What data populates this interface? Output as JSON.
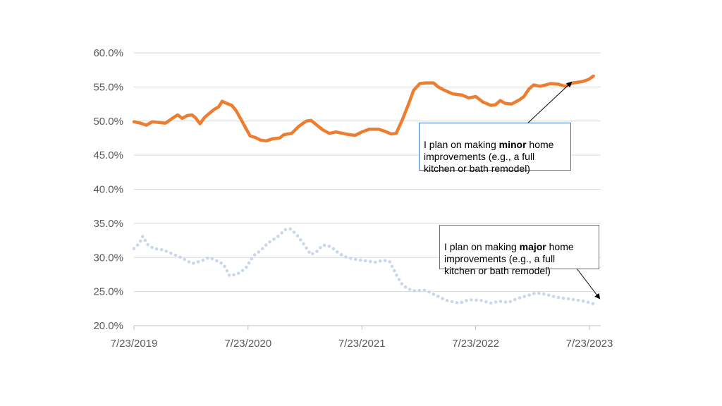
{
  "chart_data": {
    "type": "line",
    "x_axis": {
      "type": "date",
      "ticks": [
        "7/23/2019",
        "7/23/2020",
        "7/23/2021",
        "7/23/2022",
        "7/23/2023"
      ],
      "min": "2019-07-23",
      "max": "2023-08-10"
    },
    "y_axis": {
      "ticks": [
        "20.0%",
        "25.0%",
        "30.0%",
        "35.0%",
        "40.0%",
        "45.0%",
        "50.0%",
        "55.0%",
        "60.0%"
      ],
      "min": 20,
      "max": 60,
      "unit": "%"
    },
    "grid": true,
    "legend": "none",
    "series": [
      {
        "label_ref": "annotations.minor",
        "color": "#ed7d31",
        "style": "solid",
        "points": [
          [
            "2019-07-23",
            49.9
          ],
          [
            "2019-08-13",
            49.7
          ],
          [
            "2019-09-01",
            49.4
          ],
          [
            "2019-09-20",
            49.9
          ],
          [
            "2019-10-10",
            49.8
          ],
          [
            "2019-11-01",
            49.7
          ],
          [
            "2019-11-20",
            50.3
          ],
          [
            "2019-12-10",
            50.9
          ],
          [
            "2019-12-25",
            50.4
          ],
          [
            "2020-01-10",
            50.8
          ],
          [
            "2020-01-25",
            50.9
          ],
          [
            "2020-02-05",
            50.5
          ],
          [
            "2020-02-20",
            49.6
          ],
          [
            "2020-03-05",
            50.5
          ],
          [
            "2020-03-20",
            51.1
          ],
          [
            "2020-04-05",
            51.7
          ],
          [
            "2020-04-20",
            52.1
          ],
          [
            "2020-05-01",
            52.9
          ],
          [
            "2020-05-15",
            52.6
          ],
          [
            "2020-06-01",
            52.3
          ],
          [
            "2020-06-15",
            51.5
          ],
          [
            "2020-07-01",
            50.2
          ],
          [
            "2020-07-15",
            49.0
          ],
          [
            "2020-07-30",
            47.8
          ],
          [
            "2020-08-15",
            47.6
          ],
          [
            "2020-09-01",
            47.2
          ],
          [
            "2020-09-20",
            47.1
          ],
          [
            "2020-10-10",
            47.4
          ],
          [
            "2020-11-01",
            47.5
          ],
          [
            "2020-11-15",
            48.0
          ],
          [
            "2020-12-10",
            48.2
          ],
          [
            "2021-01-01",
            49.2
          ],
          [
            "2021-01-25",
            50.0
          ],
          [
            "2021-02-10",
            50.1
          ],
          [
            "2021-03-01",
            49.4
          ],
          [
            "2021-03-20",
            48.7
          ],
          [
            "2021-04-10",
            48.2
          ],
          [
            "2021-05-01",
            48.4
          ],
          [
            "2021-06-01",
            48.1
          ],
          [
            "2021-07-01",
            47.9
          ],
          [
            "2021-07-23",
            48.4
          ],
          [
            "2021-08-15",
            48.8
          ],
          [
            "2021-09-15",
            48.8
          ],
          [
            "2021-10-05",
            48.5
          ],
          [
            "2021-10-25",
            48.1
          ],
          [
            "2021-11-10",
            48.2
          ],
          [
            "2021-12-01",
            50.3
          ],
          [
            "2021-12-20",
            52.5
          ],
          [
            "2022-01-05",
            54.5
          ],
          [
            "2022-01-25",
            55.5
          ],
          [
            "2022-02-15",
            55.6
          ],
          [
            "2022-03-10",
            55.6
          ],
          [
            "2022-03-25",
            55.0
          ],
          [
            "2022-04-15",
            54.5
          ],
          [
            "2022-05-10",
            54.0
          ],
          [
            "2022-06-10",
            53.8
          ],
          [
            "2022-07-01",
            53.4
          ],
          [
            "2022-07-23",
            53.6
          ],
          [
            "2022-08-15",
            52.8
          ],
          [
            "2022-09-10",
            52.3
          ],
          [
            "2022-09-25",
            52.4
          ],
          [
            "2022-10-10",
            53.0
          ],
          [
            "2022-10-25",
            52.6
          ],
          [
            "2022-11-15",
            52.5
          ],
          [
            "2022-12-10",
            53.1
          ],
          [
            "2022-12-25",
            53.6
          ],
          [
            "2023-01-10",
            54.7
          ],
          [
            "2023-01-25",
            55.3
          ],
          [
            "2023-02-15",
            55.1
          ],
          [
            "2023-03-05",
            55.3
          ],
          [
            "2023-03-20",
            55.5
          ],
          [
            "2023-04-15",
            55.4
          ],
          [
            "2023-05-05",
            55.1
          ],
          [
            "2023-06-01",
            55.6
          ],
          [
            "2023-07-01",
            55.8
          ],
          [
            "2023-07-20",
            56.1
          ],
          [
            "2023-08-05",
            56.6
          ]
        ]
      },
      {
        "label_ref": "annotations.major",
        "color": "#c9d7ee",
        "style": "dotted",
        "points": [
          [
            "2019-07-23",
            31.3
          ],
          [
            "2019-08-10",
            32.1
          ],
          [
            "2019-08-20",
            33.1
          ],
          [
            "2019-09-05",
            31.9
          ],
          [
            "2019-09-25",
            31.3
          ],
          [
            "2019-10-25",
            31.1
          ],
          [
            "2019-11-25",
            30.5
          ],
          [
            "2019-12-25",
            29.9
          ],
          [
            "2020-01-25",
            29.1
          ],
          [
            "2020-02-25",
            29.5
          ],
          [
            "2020-03-20",
            30.0
          ],
          [
            "2020-04-10",
            29.6
          ],
          [
            "2020-05-05",
            29.0
          ],
          [
            "2020-05-25",
            27.3
          ],
          [
            "2020-06-20",
            27.6
          ],
          [
            "2020-07-15",
            28.4
          ],
          [
            "2020-08-10",
            30.3
          ],
          [
            "2020-09-01",
            31.0
          ],
          [
            "2020-09-25",
            32.1
          ],
          [
            "2020-10-25",
            33.0
          ],
          [
            "2020-11-20",
            34.1
          ],
          [
            "2020-12-05",
            34.2
          ],
          [
            "2020-12-25",
            33.4
          ],
          [
            "2021-01-20",
            31.8
          ],
          [
            "2021-02-10",
            30.4
          ],
          [
            "2021-03-01",
            30.9
          ],
          [
            "2021-03-20",
            31.8
          ],
          [
            "2021-04-15",
            31.6
          ],
          [
            "2021-05-10",
            30.6
          ],
          [
            "2021-06-05",
            30.0
          ],
          [
            "2021-07-05",
            29.7
          ],
          [
            "2021-08-05",
            29.5
          ],
          [
            "2021-09-05",
            29.3
          ],
          [
            "2021-10-01",
            29.6
          ],
          [
            "2021-10-20",
            29.4
          ],
          [
            "2021-11-10",
            27.5
          ],
          [
            "2021-12-01",
            25.9
          ],
          [
            "2022-01-01",
            25.1
          ],
          [
            "2022-02-10",
            25.2
          ],
          [
            "2022-03-20",
            24.4
          ],
          [
            "2022-04-20",
            23.7
          ],
          [
            "2022-06-01",
            23.3
          ],
          [
            "2022-07-01",
            23.8
          ],
          [
            "2022-08-10",
            23.7
          ],
          [
            "2022-09-10",
            23.3
          ],
          [
            "2022-10-05",
            23.6
          ],
          [
            "2022-11-05",
            23.4
          ],
          [
            "2022-12-05",
            24.0
          ],
          [
            "2023-01-05",
            24.4
          ],
          [
            "2023-02-01",
            24.8
          ],
          [
            "2023-03-05",
            24.6
          ],
          [
            "2023-04-05",
            24.2
          ],
          [
            "2023-05-05",
            24.0
          ],
          [
            "2023-06-05",
            23.8
          ],
          [
            "2023-07-05",
            23.6
          ],
          [
            "2023-08-05",
            23.2
          ]
        ]
      }
    ]
  },
  "annotations": {
    "minor": {
      "line1_pre": "I plan on making ",
      "bold": "minor",
      "line1_post": " home",
      "rest": "improvements (e.g.,  a full\nkitchen or bath remodel)"
    },
    "major": {
      "line1_pre": "I plan on making ",
      "bold": "major",
      "line1_post": "  home",
      "rest": "improvements (e.g., a full\nkitchen or bath remodel)"
    }
  },
  "colors": {
    "grid": "#d9d9d9",
    "axis": "#bfbfbf",
    "tick_text": "#595959",
    "callout_border": "#4472c4"
  }
}
